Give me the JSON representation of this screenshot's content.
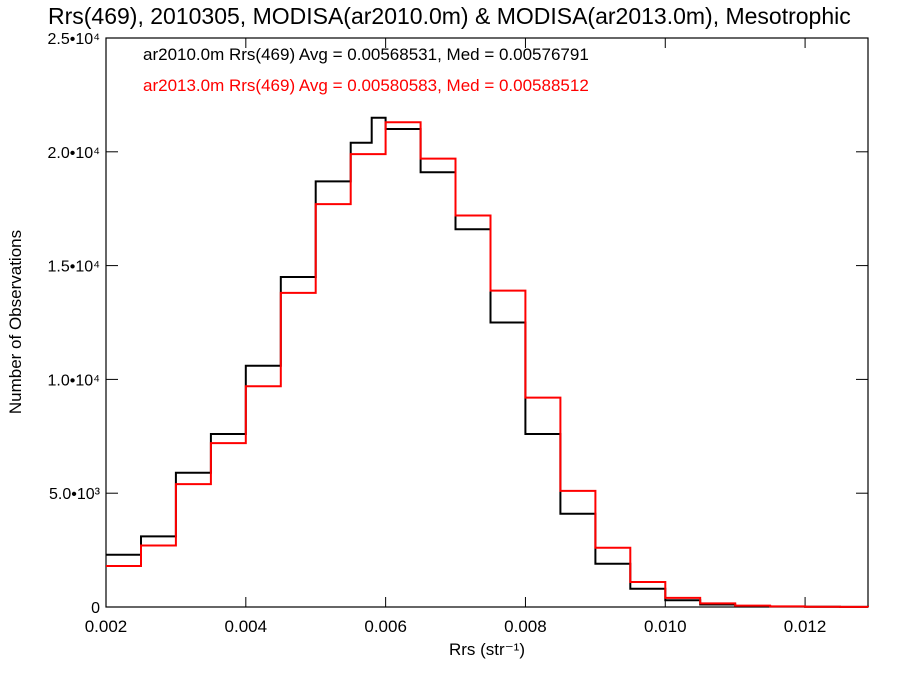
{
  "chart_data": {
    "type": "line",
    "title": "Rrs(469), 2010305, MODISA(ar2010.0m) & MODISA(ar2013.0m), Mesotrophic",
    "xlabel": "Rrs (str⁻¹)",
    "ylabel": "Number of Observations",
    "xlim": [
      0.002,
      0.0129
    ],
    "ylim": [
      0,
      25000
    ],
    "x_ticks": [
      {
        "value": 0.002,
        "label": "0.002"
      },
      {
        "value": 0.004,
        "label": "0.004"
      },
      {
        "value": 0.006,
        "label": "0.006"
      },
      {
        "value": 0.008,
        "label": "0.008"
      },
      {
        "value": 0.01,
        "label": "0.010"
      },
      {
        "value": 0.012,
        "label": "0.012"
      }
    ],
    "y_ticks": [
      {
        "value": 0,
        "label": "0"
      },
      {
        "value": 5000,
        "label": "5.0•10³"
      },
      {
        "value": 10000,
        "label": "1.0•10⁴"
      },
      {
        "value": 15000,
        "label": "1.5•10⁴"
      },
      {
        "value": 20000,
        "label": "2.0•10⁴"
      },
      {
        "value": 25000,
        "label": "2.5•10⁴"
      }
    ],
    "legend": [
      {
        "text": "ar2010.0m Rrs(469) Avg = 0.00568531, Med = 0.00576791",
        "color": "#000000"
      },
      {
        "text": "ar2013.0m Rrs(469) Avg = 0.00580583, Med = 0.00588512",
        "color": "#ff0000"
      }
    ],
    "legend_position": "top-left",
    "series": [
      {
        "color": "#000000",
        "x": [
          0.002,
          0.0025,
          0.003,
          0.0035,
          0.004,
          0.0045,
          0.005,
          0.0055,
          0.0058,
          0.006,
          0.0065,
          0.007,
          0.0075,
          0.008,
          0.0085,
          0.009,
          0.0095,
          0.01,
          0.0105,
          0.011,
          0.0115,
          0.012,
          0.0125,
          0.0129
        ],
        "y": [
          2300,
          3100,
          5900,
          7600,
          10600,
          14500,
          18700,
          20400,
          21500,
          21000,
          19100,
          16600,
          12500,
          7600,
          4100,
          1900,
          800,
          300,
          110,
          40,
          20,
          10,
          5,
          0
        ]
      },
      {
        "color": "#ff0000",
        "x": [
          0.002,
          0.0025,
          0.003,
          0.0035,
          0.004,
          0.0045,
          0.005,
          0.0055,
          0.006,
          0.0065,
          0.007,
          0.0075,
          0.008,
          0.0085,
          0.009,
          0.0095,
          0.01,
          0.0105,
          0.011,
          0.0115,
          0.012,
          0.0125,
          0.0129
        ],
        "y": [
          1800,
          2700,
          5400,
          7200,
          9700,
          13800,
          17700,
          19900,
          21300,
          19700,
          17200,
          13900,
          9200,
          5100,
          2600,
          1100,
          400,
          160,
          60,
          25,
          10,
          5,
          0
        ]
      }
    ]
  }
}
